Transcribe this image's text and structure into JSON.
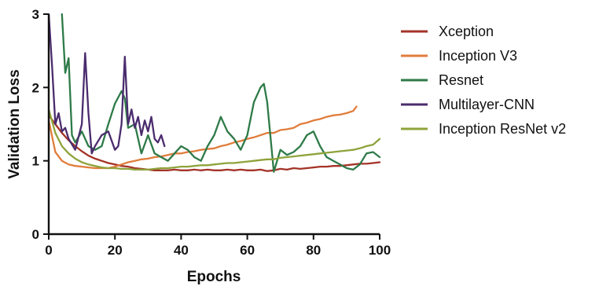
{
  "chart_data": {
    "type": "line",
    "xlabel": "Epochs",
    "ylabel": "Validation Loss",
    "xlim": [
      0,
      100
    ],
    "ylim": [
      0,
      3
    ],
    "xticks": [
      0,
      20,
      40,
      60,
      80,
      100
    ],
    "yticks": [
      0,
      1,
      2,
      3
    ],
    "grid": false,
    "legend_position": "right",
    "series": [
      {
        "name": "Xception",
        "color": "#a33327",
        "x": [
          0,
          2,
          4,
          6,
          8,
          10,
          12,
          14,
          16,
          18,
          20,
          22,
          24,
          26,
          28,
          30,
          32,
          34,
          36,
          38,
          40,
          42,
          44,
          46,
          48,
          50,
          52,
          54,
          56,
          58,
          60,
          62,
          64,
          66,
          68,
          70,
          72,
          74,
          76,
          78,
          80,
          82,
          84,
          86,
          88,
          90,
          92,
          94,
          96,
          98,
          100
        ],
        "values": [
          1.62,
          1.5,
          1.38,
          1.28,
          1.2,
          1.13,
          1.07,
          1.03,
          1.0,
          0.97,
          0.95,
          0.93,
          0.92,
          0.9,
          0.89,
          0.88,
          0.87,
          0.87,
          0.87,
          0.88,
          0.87,
          0.87,
          0.88,
          0.87,
          0.88,
          0.87,
          0.87,
          0.88,
          0.87,
          0.88,
          0.87,
          0.87,
          0.88,
          0.86,
          0.87,
          0.89,
          0.88,
          0.9,
          0.89,
          0.9,
          0.91,
          0.92,
          0.92,
          0.93,
          0.93,
          0.94,
          0.95,
          0.96,
          0.96,
          0.97,
          0.98
        ]
      },
      {
        "name": "Inception V3",
        "color": "#e07d3c",
        "x": [
          0,
          2,
          4,
          6,
          8,
          10,
          12,
          14,
          16,
          18,
          20,
          22,
          24,
          26,
          28,
          30,
          32,
          34,
          36,
          38,
          40,
          42,
          44,
          46,
          48,
          50,
          52,
          54,
          56,
          58,
          60,
          62,
          64,
          66,
          68,
          70,
          72,
          74,
          76,
          78,
          80,
          82,
          84,
          86,
          88,
          90,
          92,
          93
        ],
        "values": [
          1.55,
          1.12,
          1.0,
          0.95,
          0.93,
          0.92,
          0.91,
          0.9,
          0.9,
          0.9,
          0.92,
          0.95,
          0.98,
          1.0,
          1.02,
          1.03,
          1.05,
          1.06,
          1.08,
          1.1,
          1.1,
          1.12,
          1.13,
          1.15,
          1.16,
          1.17,
          1.2,
          1.22,
          1.25,
          1.27,
          1.3,
          1.32,
          1.35,
          1.38,
          1.38,
          1.42,
          1.43,
          1.45,
          1.5,
          1.52,
          1.55,
          1.57,
          1.6,
          1.62,
          1.63,
          1.65,
          1.68,
          1.74
        ]
      },
      {
        "name": "Resnet",
        "color": "#2e7a48",
        "x": [
          4,
          5,
          6,
          7,
          8,
          10,
          12,
          14,
          16,
          18,
          20,
          22,
          23,
          24,
          26,
          28,
          30,
          32,
          34,
          36,
          38,
          40,
          42,
          44,
          46,
          48,
          50,
          52,
          54,
          56,
          58,
          60,
          62,
          64,
          65,
          66,
          68,
          70,
          72,
          74,
          76,
          78,
          80,
          82,
          84,
          86,
          88,
          90,
          92,
          94,
          96,
          98,
          100
        ],
        "values": [
          3.0,
          2.2,
          2.4,
          1.35,
          1.25,
          1.4,
          1.2,
          1.15,
          1.2,
          1.5,
          1.78,
          1.95,
          1.85,
          1.45,
          1.5,
          1.1,
          1.35,
          1.1,
          1.05,
          1.0,
          1.1,
          1.2,
          1.15,
          1.05,
          1.0,
          1.2,
          1.35,
          1.6,
          1.4,
          1.3,
          1.15,
          1.35,
          1.8,
          2.0,
          2.05,
          1.8,
          0.85,
          1.15,
          1.08,
          1.12,
          1.2,
          1.35,
          1.4,
          1.2,
          1.05,
          1.0,
          0.95,
          0.9,
          0.88,
          0.95,
          1.1,
          1.12,
          1.05
        ]
      },
      {
        "name": "Multilayer-CNN",
        "color": "#4b2c6e",
        "x": [
          0,
          1,
          2,
          3,
          4,
          5,
          6,
          8,
          10,
          11,
          12,
          13,
          14,
          16,
          18,
          20,
          21,
          22,
          23,
          24,
          25,
          26,
          27,
          28,
          29,
          30,
          31,
          32,
          33,
          34,
          35
        ],
        "values": [
          3.0,
          2.3,
          1.5,
          1.65,
          1.4,
          1.45,
          1.3,
          1.15,
          1.5,
          2.47,
          1.65,
          1.1,
          1.2,
          1.35,
          1.4,
          1.15,
          1.2,
          1.5,
          2.42,
          1.5,
          1.7,
          1.45,
          1.6,
          1.35,
          1.55,
          1.4,
          1.6,
          1.3,
          1.25,
          1.35,
          1.2
        ]
      },
      {
        "name": "Inception ResNet v2",
        "color": "#8ea33b",
        "x": [
          0,
          2,
          4,
          6,
          8,
          10,
          12,
          14,
          16,
          18,
          20,
          22,
          24,
          26,
          28,
          30,
          32,
          34,
          36,
          38,
          40,
          42,
          44,
          46,
          48,
          50,
          52,
          54,
          56,
          58,
          60,
          62,
          64,
          66,
          68,
          70,
          72,
          74,
          76,
          78,
          80,
          82,
          84,
          86,
          88,
          90,
          92,
          94,
          96,
          98,
          100
        ],
        "values": [
          1.7,
          1.38,
          1.2,
          1.1,
          1.03,
          0.98,
          0.95,
          0.93,
          0.91,
          0.9,
          0.9,
          0.89,
          0.89,
          0.88,
          0.88,
          0.88,
          0.89,
          0.9,
          0.9,
          0.91,
          0.92,
          0.92,
          0.93,
          0.94,
          0.94,
          0.95,
          0.96,
          0.97,
          0.97,
          0.98,
          0.99,
          1.0,
          1.01,
          1.02,
          1.02,
          1.04,
          1.05,
          1.06,
          1.07,
          1.08,
          1.09,
          1.1,
          1.11,
          1.12,
          1.13,
          1.14,
          1.15,
          1.17,
          1.2,
          1.22,
          1.3
        ]
      }
    ]
  }
}
